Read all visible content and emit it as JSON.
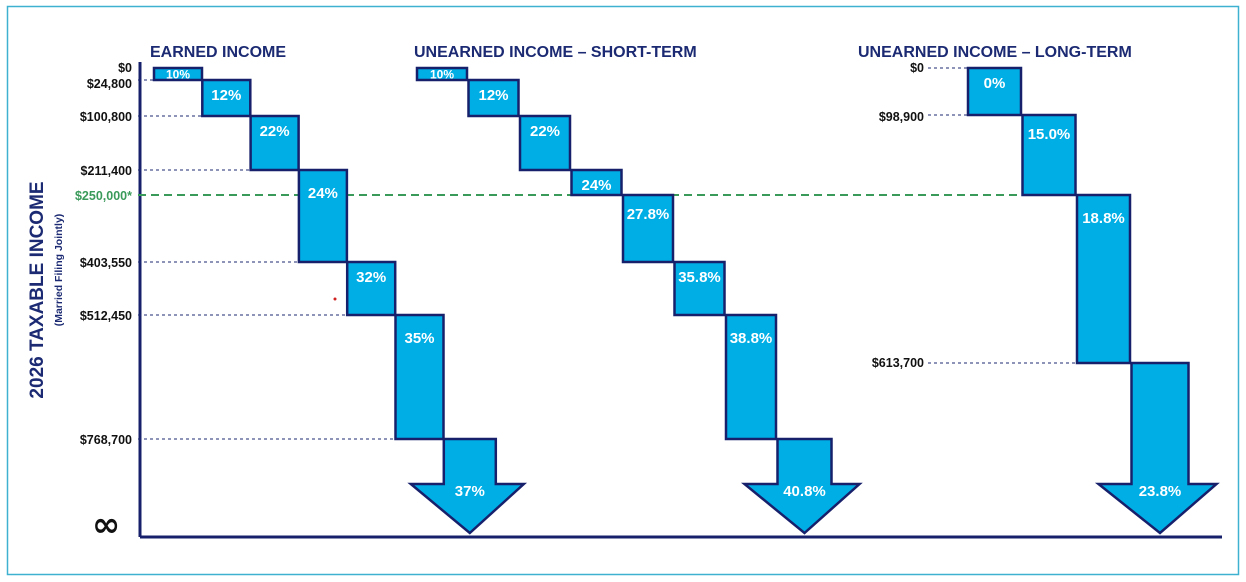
{
  "colors": {
    "frame": "#3db1cf",
    "box_fill": "#00aee6",
    "box_stroke": "#17206b",
    "title": "#1b2a72",
    "threshold": "#3a9a5a",
    "dashed": "#1b2a72"
  },
  "axis": {
    "title": "2026 TAXABLE INCOME",
    "subtitle": "(Married Filing Jointly)",
    "infinity": "∞"
  },
  "threshold": {
    "label": "$250,000*",
    "value": 250000
  },
  "groups": [
    {
      "title": "EARNED INCOME",
      "income_labels": [
        "$0",
        "$24,800",
        "$100,800",
        "$211,400",
        "$403,550",
        "$512,450",
        "$768,700"
      ],
      "brackets": [
        {
          "rate": "10%",
          "from": 0,
          "to": 24800
        },
        {
          "rate": "12%",
          "from": 24800,
          "to": 100800
        },
        {
          "rate": "22%",
          "from": 100800,
          "to": 211400
        },
        {
          "rate": "24%",
          "from": 211400,
          "to": 403550
        },
        {
          "rate": "32%",
          "from": 403550,
          "to": 512450
        },
        {
          "rate": "35%",
          "from": 512450,
          "to": 768700
        },
        {
          "rate": "37%",
          "from": 768700,
          "to": null
        }
      ]
    },
    {
      "title": "UNEARNED INCOME – SHORT-TERM",
      "income_labels": [],
      "brackets": [
        {
          "rate": "10%",
          "from": 0,
          "to": 24800
        },
        {
          "rate": "12%",
          "from": 24800,
          "to": 100800
        },
        {
          "rate": "22%",
          "from": 100800,
          "to": 211400
        },
        {
          "rate": "24%",
          "from": 211400,
          "to": 250000
        },
        {
          "rate": "27.8%",
          "from": 250000,
          "to": 403550
        },
        {
          "rate": "35.8%",
          "from": 403550,
          "to": 512450
        },
        {
          "rate": "38.8%",
          "from": 512450,
          "to": 768700
        },
        {
          "rate": "40.8%",
          "from": 768700,
          "to": null
        }
      ]
    },
    {
      "title": "UNEARNED INCOME – LONG-TERM",
      "income_labels": [
        "$0",
        "$98,900",
        "$613,700"
      ],
      "brackets": [
        {
          "rate": "0%",
          "from": 0,
          "to": 98900
        },
        {
          "rate": "15.0%",
          "from": 98900,
          "to": 250000
        },
        {
          "rate": "18.8%",
          "from": 250000,
          "to": 613700
        },
        {
          "rate": "23.8%",
          "from": 613700,
          "to": null
        }
      ]
    }
  ]
}
